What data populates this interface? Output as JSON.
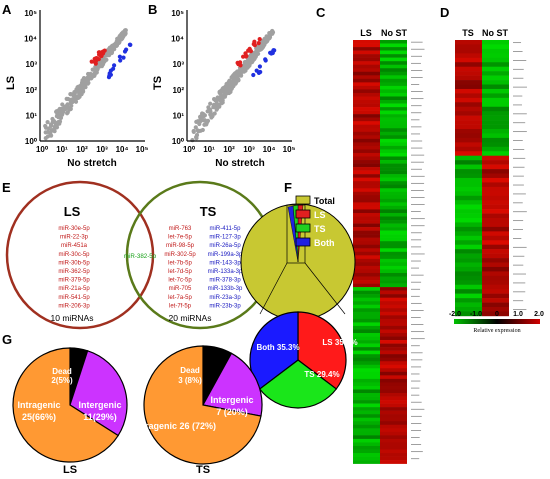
{
  "panels": {
    "A": "A",
    "B": "B",
    "C": "C",
    "D": "D",
    "E": "E",
    "F": "F",
    "G": "G"
  },
  "scatter_A": {
    "ylabel": "LS",
    "xlabel": "No stretch",
    "ticks": [
      "10⁰",
      "10¹",
      "10²",
      "10³",
      "10⁴",
      "10⁵"
    ]
  },
  "scatter_B": {
    "ylabel": "TS",
    "xlabel": "No stretch",
    "ticks": [
      "10⁰",
      "10¹",
      "10²",
      "10³",
      "10⁴",
      "10⁵"
    ]
  },
  "heatmap_C": {
    "col1": "LS",
    "col2": "No ST"
  },
  "heatmap_D": {
    "col1": "TS",
    "col2": "No ST"
  },
  "colorbar": {
    "ticks": [
      "-2.0",
      "-1.0",
      "0",
      "1.0",
      "2.0"
    ],
    "label": "Relative expression"
  },
  "venn": {
    "ls_title": "LS",
    "ts_title": "TS",
    "ls_only": [
      "miR-30e-5p",
      "miR-22-3p",
      "miR-451a",
      "miR-30c-5p",
      "miR-30b-5p",
      "miR-362-5p",
      "miR-379-5p",
      "miR-21a-5p",
      "miR-541-5p",
      "miR-206-3p"
    ],
    "both": "miR-382-5p",
    "ts_red": [
      "miR-763",
      "let-7e-5p",
      "miR-98-5p",
      "miR-302-5p",
      "let-7b-5p",
      "let-7d-5p",
      "let-7c-5p",
      "miR-705",
      "let-7a-5p",
      "let-7f-5p"
    ],
    "ts_blue": [
      "miR-411-5p",
      "miR-127-3p",
      "miR-26a-5p",
      "miR-199a-3p",
      "miR-143-3p",
      "miR-133a-3p",
      "miR-378-3p",
      "miR-133b-3p",
      "miR-23a-3p",
      "miR-23b-3p"
    ],
    "ls_count": "10 miRNAs",
    "ts_count": "20 miRNAs"
  },
  "legend_F": {
    "items": [
      "Total",
      "LS",
      "TS",
      "Both"
    ],
    "colors": [
      "#c8c832",
      "#e02020",
      "#20d020",
      "#2020e0"
    ]
  },
  "chart_data": [
    {
      "type": "pie",
      "title": "",
      "slices": [
        {
          "label": "LS 35.3%",
          "value": 35.3,
          "color": "#ff1a1a"
        },
        {
          "label": "TS 29.4%",
          "value": 29.4,
          "color": "#1ae61a"
        },
        {
          "label": "Both 35.3%",
          "value": 35.3,
          "color": "#1a1aff"
        }
      ]
    },
    {
      "type": "pie",
      "title": "LS",
      "slices": [
        {
          "label": "Dead 2(5%)",
          "value": 5,
          "color": "#000000"
        },
        {
          "label": "Intergenic 11(29%)",
          "value": 29,
          "color": "#cc33ff"
        },
        {
          "label": "Intragenic 25(66%)",
          "value": 66,
          "color": "#ff9933"
        }
      ]
    },
    {
      "type": "pie",
      "title": "TS",
      "slices": [
        {
          "label": "Dead 3 (8%)",
          "value": 8,
          "color": "#000000"
        },
        {
          "label": "Intergenic 7 (20%)",
          "value": 20,
          "color": "#cc33ff"
        },
        {
          "label": "Intragenic 26 (72%)",
          "value": 72,
          "color": "#ff9933"
        }
      ]
    }
  ],
  "pie_LS": {
    "title": "LS",
    "dead": "Dead",
    "dead_v": "2(5%)",
    "inter": "Intergenic",
    "inter_v": "11(29%)",
    "intra": "Intragenic",
    "intra_v": "25(66%)"
  },
  "pie_TS": {
    "title": "TS",
    "dead": "Dead",
    "dead_v": "3 (8%)",
    "inter": "Intergenic",
    "inter_v": "7 (20%)",
    "intra": "Intragenic 26 (72%)"
  },
  "pie_F": {
    "ls": "LS 35.3%",
    "ts": "TS 29.4%",
    "both": "Both 35.3%"
  }
}
